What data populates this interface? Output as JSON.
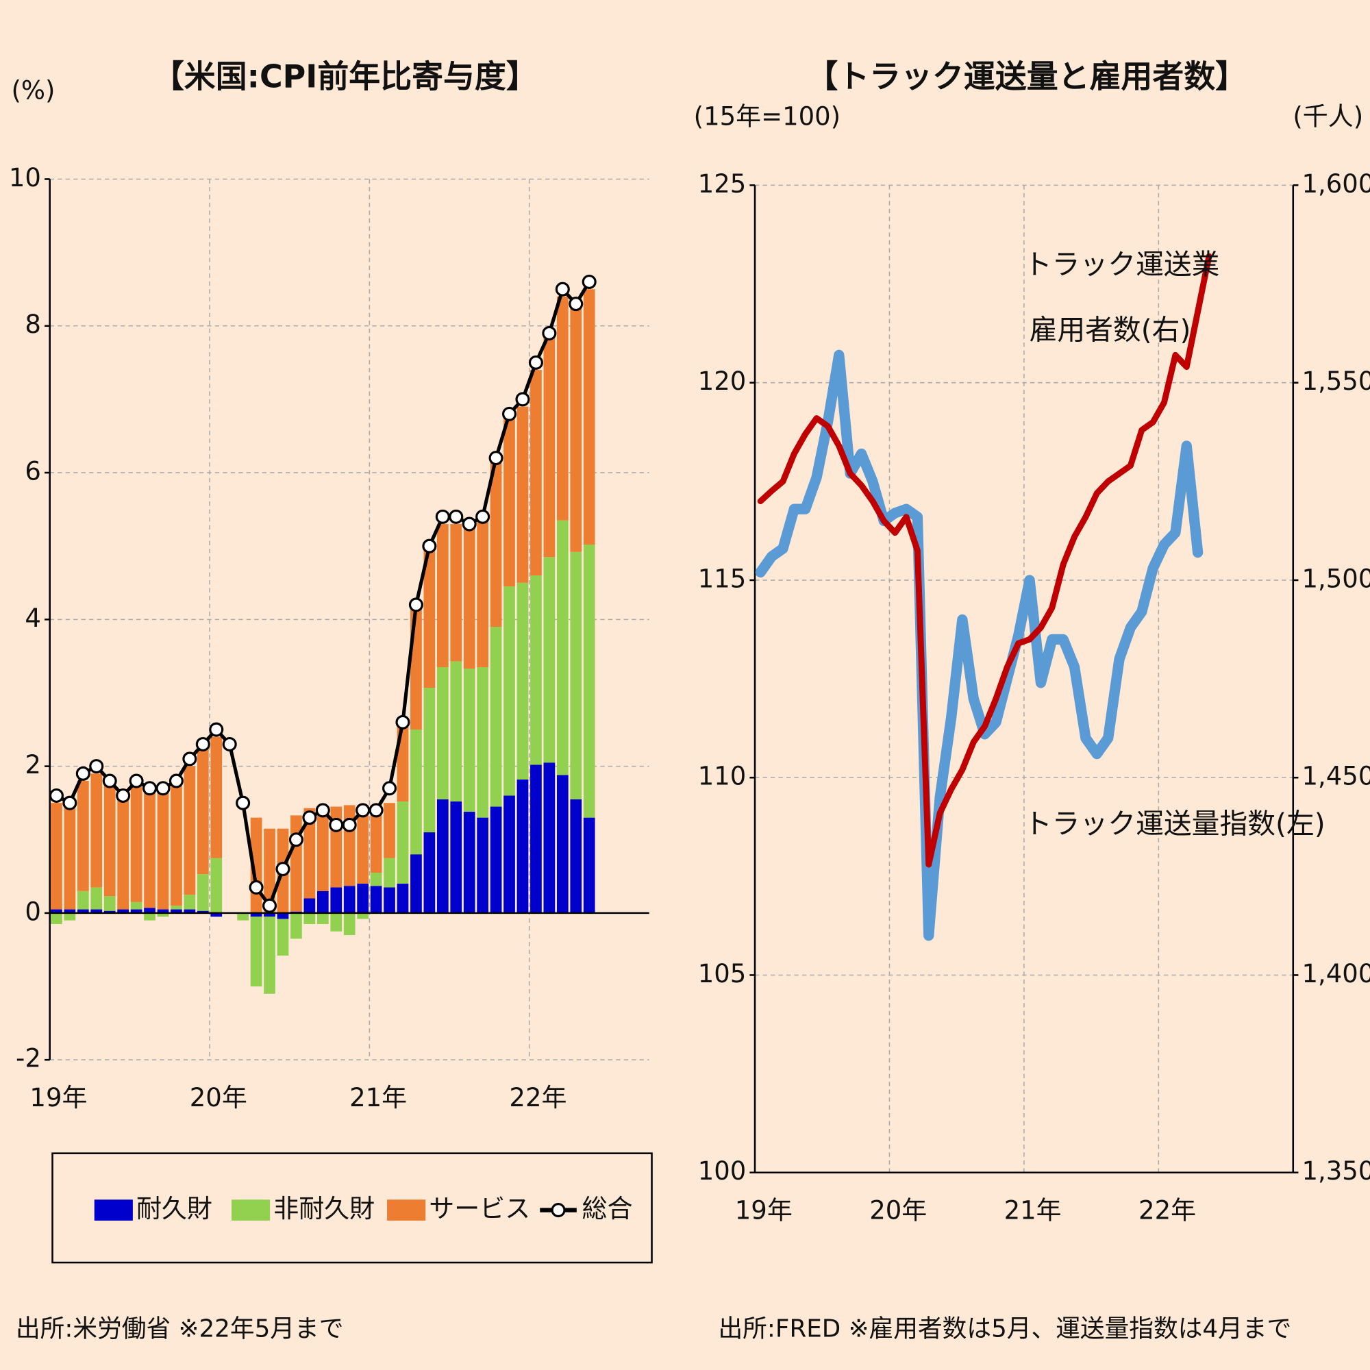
{
  "chart_data": [
    {
      "type": "bar",
      "stacked": true,
      "title": "【米国:CPI前年比寄与度】",
      "y_label": "(%)",
      "source": "出所:米労働省  ※22年5月まで",
      "categories": [
        "19年",
        null,
        null,
        null,
        null,
        null,
        null,
        null,
        null,
        null,
        null,
        null,
        "20年",
        null,
        null,
        null,
        null,
        null,
        null,
        null,
        null,
        null,
        null,
        null,
        "21年",
        null,
        null,
        null,
        null,
        null,
        null,
        null,
        null,
        null,
        null,
        null,
        "22年",
        null,
        null,
        null,
        null
      ],
      "series": [
        {
          "name": "耐久財",
          "color": "#0000cc",
          "values": [
            0.05,
            0.05,
            0.05,
            0.05,
            0.03,
            0.05,
            0.05,
            0.07,
            0.05,
            0.05,
            0.05,
            0.03,
            -0.05,
            null,
            0,
            -0.05,
            -0.05,
            -0.08,
            0.02,
            0.2,
            0.3,
            0.35,
            0.37,
            0.4,
            0.37,
            0.35,
            0.4,
            0.8,
            1.1,
            1.55,
            1.52,
            1.38,
            1.3,
            1.45,
            1.6,
            1.82,
            2.02,
            2.05,
            1.88,
            1.55,
            1.3
          ]
        },
        {
          "name": "非耐久財",
          "color": "#92d050",
          "values": [
            -0.15,
            -0.1,
            0.25,
            0.3,
            0.2,
            0,
            0.1,
            -0.1,
            -0.05,
            0.05,
            0.2,
            0.5,
            0.75,
            null,
            -0.1,
            -0.95,
            -1.05,
            -0.5,
            -0.35,
            -0.15,
            -0.15,
            -0.25,
            -0.3,
            -0.08,
            0.18,
            0.4,
            1.12,
            1.7,
            1.97,
            1.8,
            1.91,
            1.95,
            2.05,
            2.45,
            2.85,
            2.68,
            2.58,
            2.8,
            3.47,
            3.37,
            3.72
          ]
        },
        {
          "name": "サービス",
          "color": "#ed7d31",
          "values": [
            1.45,
            1.4,
            1.5,
            1.55,
            1.52,
            1.55,
            1.6,
            1.63,
            1.6,
            1.65,
            1.75,
            1.72,
            1.65,
            null,
            0,
            1.3,
            1.15,
            1.15,
            1.31,
            1.23,
            1.15,
            1.1,
            1.1,
            1.07,
            0.92,
            0.75,
            1.08,
            1.7,
            1.93,
            1.95,
            1.87,
            1.92,
            2.0,
            2.3,
            2.35,
            2.4,
            2.8,
            3.05,
            3.05,
            3.38,
            3.48
          ]
        },
        {
          "name": "総合",
          "type": "line",
          "color": "#000000",
          "values": [
            1.6,
            1.5,
            1.9,
            2.0,
            1.8,
            1.6,
            1.8,
            1.7,
            1.7,
            1.8,
            2.1,
            2.3,
            2.5,
            2.3,
            1.5,
            0.35,
            0.1,
            0.6,
            1.0,
            1.3,
            1.4,
            1.2,
            1.2,
            1.4,
            1.4,
            1.7,
            2.6,
            4.2,
            5.0,
            5.4,
            5.4,
            5.3,
            5.4,
            6.2,
            6.8,
            7.0,
            7.5,
            7.9,
            8.5,
            8.3,
            8.6
          ]
        }
      ],
      "ylim": [
        -2,
        10
      ],
      "yticks": [
        -2,
        0,
        2,
        4,
        6,
        8,
        10
      ],
      "grid": true,
      "legend": "bottom"
    },
    {
      "type": "line",
      "title": "【トラック運送量と雇用者数】",
      "y_label": "(15年=100)",
      "y2_label": "(千人)",
      "source": "出所:FRED  ※雇用者数は5月、運送量指数は4月まで",
      "annotations": [
        "トラック運送業",
        "雇用者数(右)",
        "トラック運送量指数(左)"
      ],
      "categories": [
        "19年",
        null,
        null,
        null,
        null,
        null,
        null,
        null,
        null,
        null,
        null,
        null,
        "20年",
        null,
        null,
        null,
        null,
        null,
        null,
        null,
        null,
        null,
        null,
        null,
        "21年",
        null,
        null,
        null,
        null,
        null,
        null,
        null,
        null,
        null,
        null,
        null,
        "22年",
        null,
        null,
        null,
        null
      ],
      "series": [
        {
          "color": "#5b9bd5",
          "values": [
            115.2,
            115.6,
            115.8,
            116.8,
            116.8,
            117.6,
            119.0,
            120.7,
            117.7,
            118.2,
            117.5,
            116.5,
            116.7,
            116.8,
            116.6,
            106.0,
            109.5,
            111.5,
            114.0,
            112.0,
            111.1,
            111.4,
            112.5,
            113.6,
            115.0,
            112.4,
            113.5,
            113.5,
            112.8,
            111.0,
            110.6,
            111.0,
            113.0,
            113.8,
            114.2,
            115.3,
            115.9,
            116.2,
            118.4,
            115.7,
            null
          ]
        },
        {
          "color": "#c00000",
          "axis": "y2",
          "values": [
            1520,
            1522.6,
            1525,
            1532,
            1537,
            1541,
            1539,
            1534,
            1527,
            1524,
            1520,
            1515,
            1512,
            1516,
            1507.5,
            1428,
            1441,
            1447,
            1452,
            1459,
            1463,
            1470,
            1478,
            1484,
            1485,
            1488,
            1493,
            1504,
            1511,
            1516,
            1522,
            1525,
            1527,
            1529,
            1538,
            1540,
            1545,
            1557,
            1554,
            1568,
            1582
          ]
        }
      ],
      "ylim": [
        100,
        125
      ],
      "yticks": [
        100,
        105,
        110,
        115,
        120,
        125
      ],
      "y2lim": [
        1350,
        1600
      ],
      "y2ticks": [
        {
          "value": 1350,
          "label": "1,350"
        },
        {
          "value": 1400,
          "label": "1,400"
        },
        {
          "value": 1450,
          "label": "1,450"
        },
        {
          "value": 1500,
          "label": "1,500"
        },
        {
          "value": 1550,
          "label": "1,550"
        },
        {
          "value": 1600,
          "label": "1,600"
        }
      ],
      "grid": true
    }
  ]
}
